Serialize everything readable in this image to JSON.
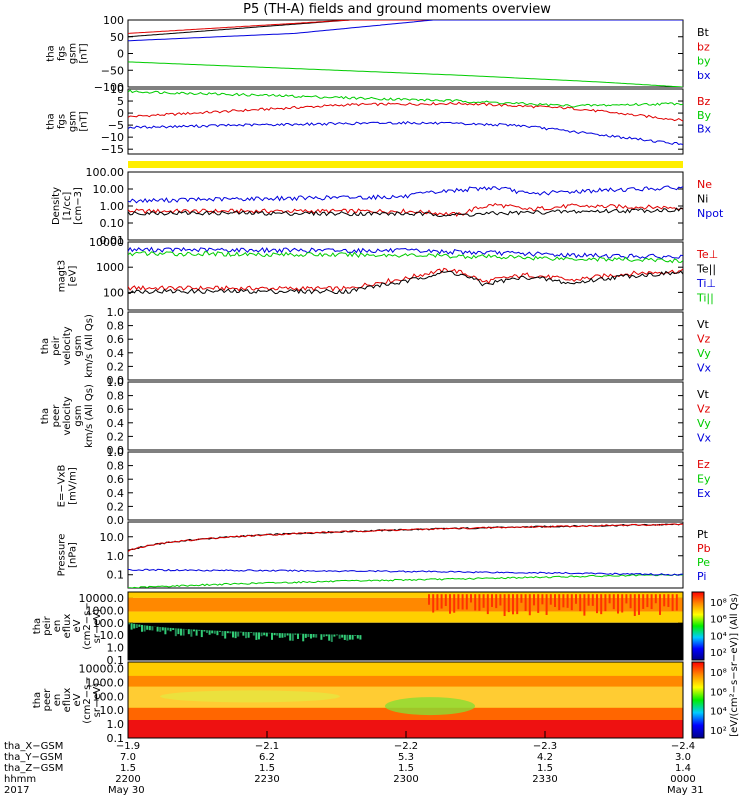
{
  "title": "P5 (TH-A) fields and ground moments overview",
  "colors": {
    "black": "#000000",
    "red": "#e00000",
    "green": "#00cc00",
    "blue": "#0000dd",
    "yellow": "#ffee00"
  },
  "chart_data": [
    {
      "type": "line",
      "panel": "fgs-gsm",
      "ylabel": [
        "tha",
        "fgs",
        "gsm",
        "[nT]"
      ],
      "yscale": "linear",
      "ylim": [
        -100,
        100
      ],
      "yticks": [
        "100",
        "50",
        "0",
        "−50",
        "−100"
      ],
      "series": [
        {
          "name": "Bt",
          "color": "black",
          "x": [
            0,
            0.4
          ],
          "y": [
            50,
            100
          ]
        },
        {
          "name": "bz",
          "color": "red",
          "x": [
            0,
            0.4
          ],
          "y": [
            60,
            100
          ]
        },
        {
          "name": "by",
          "color": "green",
          "x": [
            0,
            0.3,
            0.6,
            0.85,
            1
          ],
          "y": [
            -25,
            -45,
            -65,
            -85,
            -100
          ]
        },
        {
          "name": "bx",
          "color": "blue",
          "x": [
            0,
            0.3,
            0.55
          ],
          "y": [
            38,
            60,
            100
          ]
        }
      ]
    },
    {
      "type": "line",
      "panel": "fgs-gsm-dsl",
      "ylabel": [
        "tha",
        "fgs",
        "gsm",
        "[nT]"
      ],
      "yscale": "linear",
      "ylim": [
        -17,
        10
      ],
      "yticks": [
        "10",
        "5",
        "0",
        "−5",
        "−10",
        "−15"
      ],
      "series": [
        {
          "name": "Bz",
          "color": "red",
          "x": [
            0,
            0.2,
            0.4,
            0.6,
            0.8,
            1
          ],
          "y": [
            -1.5,
            1,
            3.5,
            4,
            2,
            -3
          ]
        },
        {
          "name": "By",
          "color": "green",
          "x": [
            0,
            0.3,
            0.6,
            0.8,
            1
          ],
          "y": [
            9,
            7,
            5,
            3,
            4
          ]
        },
        {
          "name": "Bx",
          "color": "blue",
          "x": [
            0,
            0.2,
            0.5,
            0.7,
            0.85,
            1
          ],
          "y": [
            -6,
            -5,
            -4,
            -5,
            -9,
            -13
          ]
        }
      ]
    },
    {
      "type": "line",
      "panel": "density",
      "ylabel": [
        "Density",
        "[1/cc]",
        "[cm−3]"
      ],
      "yscale": "log",
      "ylim": [
        0.01,
        100
      ],
      "yticks": [
        "100.00",
        "10.00",
        "1.00",
        "0.10",
        "0.01"
      ],
      "series": [
        {
          "name": "Ne",
          "color": "red",
          "x": [
            0,
            0.5,
            0.6,
            0.66,
            0.72,
            0.8,
            1
          ],
          "y": [
            0.5,
            0.5,
            0.3,
            1.2,
            0.6,
            1.0,
            0.8
          ]
        },
        {
          "name": "Ni",
          "color": "black",
          "x": [
            0,
            0.5,
            0.6,
            0.7,
            1
          ],
          "y": [
            0.4,
            0.35,
            0.3,
            0.4,
            0.6
          ]
        },
        {
          "name": "Npot",
          "color": "blue",
          "x": [
            0,
            0.5,
            0.62,
            0.66,
            0.72,
            1
          ],
          "y": [
            2,
            3.5,
            10,
            12,
            5,
            12
          ]
        }
      ]
    },
    {
      "type": "line",
      "panel": "temperature",
      "ylabel": [
        "magt3",
        "[eV]"
      ],
      "yscale": "log",
      "ylim": [
        20,
        10000
      ],
      "yticks": [
        "10000",
        "1000",
        "100"
      ],
      "series": [
        {
          "name": "Te⊥",
          "color": "red",
          "x": [
            0,
            0.4,
            0.5,
            0.58,
            0.64,
            0.72,
            0.8,
            0.9,
            1
          ],
          "y": [
            150,
            140,
            350,
            800,
            250,
            500,
            300,
            550,
            700
          ]
        },
        {
          "name": "Te||",
          "color": "black",
          "x": [
            0,
            0.4,
            0.5,
            0.58,
            0.64,
            0.72,
            0.8,
            0.9,
            1
          ],
          "y": [
            110,
            110,
            260,
            650,
            200,
            400,
            220,
            450,
            600
          ]
        },
        {
          "name": "Ti⊥",
          "color": "blue",
          "x": [
            0,
            0.5,
            0.8,
            1
          ],
          "y": [
            5000,
            4500,
            3000,
            2500
          ]
        },
        {
          "name": "Ti||",
          "color": "green",
          "x": [
            0,
            0.5,
            0.8,
            1
          ],
          "y": [
            3500,
            3000,
            2200,
            1800
          ]
        }
      ]
    },
    {
      "type": "line",
      "panel": "peir-velocity",
      "ylabel": [
        "tha",
        "peir",
        "velocity",
        "gsm",
        "km/s (All Qs)"
      ],
      "yscale": "linear",
      "ylim": [
        0,
        1
      ],
      "yticks": [
        "1.0",
        "0.8",
        "0.6",
        "0.4",
        "0.2",
        "0.0"
      ],
      "series": [
        {
          "name": "Vt",
          "color": "black",
          "values": []
        },
        {
          "name": "Vz",
          "color": "red",
          "values": []
        },
        {
          "name": "Vy",
          "color": "green",
          "values": []
        },
        {
          "name": "Vx",
          "color": "blue",
          "values": []
        }
      ]
    },
    {
      "type": "line",
      "panel": "peer-velocity",
      "ylabel": [
        "tha",
        "peer",
        "velocity",
        "gsm",
        "km/s (All Qs)"
      ],
      "yscale": "linear",
      "ylim": [
        0,
        1
      ],
      "yticks": [
        "1.0",
        "0.8",
        "0.6",
        "0.4",
        "0.2",
        "0.0"
      ],
      "series": [
        {
          "name": "Vt",
          "color": "black",
          "values": []
        },
        {
          "name": "Vz",
          "color": "red",
          "values": []
        },
        {
          "name": "Vy",
          "color": "green",
          "values": []
        },
        {
          "name": "Vx",
          "color": "blue",
          "values": []
        }
      ]
    },
    {
      "type": "line",
      "panel": "efield",
      "ylabel": [
        "E=−VxB",
        "[mV/m]"
      ],
      "yscale": "linear",
      "ylim": [
        0,
        1
      ],
      "yticks": [
        "1.0",
        "0.8",
        "0.6",
        "0.4",
        "0.2",
        "0.0"
      ],
      "series": [
        {
          "name": "Ez",
          "color": "red",
          "values": []
        },
        {
          "name": "Ey",
          "color": "green",
          "values": []
        },
        {
          "name": "Ex",
          "color": "blue",
          "values": []
        }
      ]
    },
    {
      "type": "line",
      "panel": "pressure",
      "ylabel": [
        "Pressure",
        "[nPa]"
      ],
      "yscale": "log",
      "ylim": [
        0.02,
        60
      ],
      "yticks": [
        "10.0",
        "1.0",
        "0.1"
      ],
      "series": [
        {
          "name": "Pt",
          "color": "black",
          "x": [
            0,
            1
          ],
          "y": [
            1.8,
            45
          ]
        },
        {
          "name": "Pb",
          "color": "red",
          "x": [
            0,
            1
          ],
          "y": [
            1.8,
            45
          ]
        },
        {
          "name": "Pe",
          "color": "green",
          "x": [
            0,
            0.3,
            0.6,
            0.8,
            1
          ],
          "y": [
            0.02,
            0.04,
            0.06,
            0.08,
            0.1
          ]
        },
        {
          "name": "Pi",
          "color": "blue",
          "x": [
            0,
            0.5,
            0.8,
            1
          ],
          "y": [
            0.18,
            0.15,
            0.12,
            0.1
          ]
        }
      ]
    },
    {
      "type": "heatmap",
      "panel": "peir-en-eflux",
      "ylabel": [
        "tha",
        "peir",
        "en",
        "eflux",
        "eV",
        "(cm2−s−",
        "sr−eV)"
      ],
      "yscale": "log",
      "ylim": [
        0.1,
        30000
      ],
      "yticks": [
        "10000.0",
        "1000.0",
        "100.0",
        "10.0",
        "1.0",
        "0.1"
      ],
      "colorbar_label": "[eV/(cm²−s−sr−eV)] (All Qs)"
    },
    {
      "type": "heatmap",
      "panel": "peer-en-eflux",
      "ylabel": [
        "tha",
        "peer",
        "en",
        "eflux",
        "eV",
        "(cm2−s−",
        "sr−eV)"
      ],
      "yscale": "log",
      "ylim": [
        0.1,
        30000
      ],
      "yticks": [
        "10000.0",
        "1000.0",
        "100.0",
        "10.0",
        "1.0",
        "0.1"
      ],
      "colorbar_label": "[eV/(cm²−s−sr−eV)] (All Qs)"
    }
  ],
  "colorbar_ticks": [
    "10⁸",
    "10⁶",
    "10⁴",
    "10²"
  ],
  "xaxis": {
    "rows": [
      {
        "label": "tha_X−GSM",
        "values": [
          "−1.9",
          "−2.1",
          "−2.2",
          "−2.3",
          "−2.4"
        ]
      },
      {
        "label": "tha_Y−GSM",
        "values": [
          "7.0",
          "6.2",
          "5.3",
          "4.2",
          "3.0"
        ]
      },
      {
        "label": "tha_Z−GSM",
        "values": [
          "1.5",
          "1.5",
          "1.5",
          "1.5",
          "1.4"
        ]
      },
      {
        "label": "hhmm",
        "values": [
          "2200",
          "2230",
          "2300",
          "2330",
          "0000"
        ]
      }
    ],
    "year": "2017",
    "date_start": "May 30",
    "date_end": "May 31"
  }
}
